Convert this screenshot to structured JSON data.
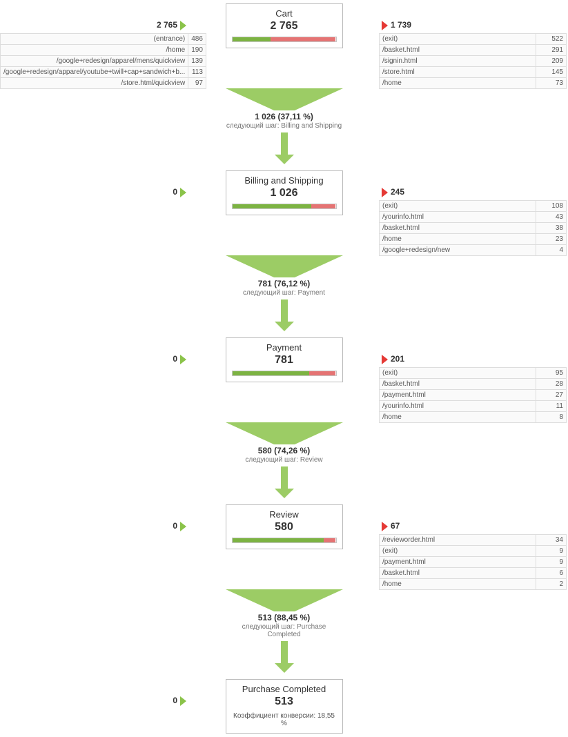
{
  "colors": {
    "green": "#8bc34a",
    "green_dark": "#7cb342",
    "red": "#e57373",
    "red_tri": "#e53935",
    "border": "#bbb",
    "cell_border": "#ddd",
    "cell_bg": "#fafafa",
    "text_muted": "#757575"
  },
  "next_step_prefix": "следующий шаг: ",
  "conversion_label": "Коэффициент конверсии: ",
  "steps": [
    {
      "title": "Cart",
      "value": "2 765",
      "in": "2 765",
      "out": "1 739",
      "continue_value": "1 026",
      "continue_pct": "(37,11 %)",
      "next_label": "Billing and Shipping",
      "bar_green_pct": 37.11,
      "in_table": [
        [
          "(entrance)",
          "486"
        ],
        [
          "/home",
          "190"
        ],
        [
          "/google+redesign/apparel/mens/quickview",
          "139"
        ],
        [
          "/google+redesign/apparel/youtube+twill+cap+sandwich+b...",
          "113"
        ],
        [
          "/store.html/quickview",
          "97"
        ]
      ],
      "out_table": [
        [
          "(exit)",
          "522"
        ],
        [
          "/basket.html",
          "291"
        ],
        [
          "/signin.html",
          "209"
        ],
        [
          "/store.html",
          "145"
        ],
        [
          "/home",
          "73"
        ]
      ]
    },
    {
      "title": "Billing and Shipping",
      "value": "1 026",
      "in": "0",
      "out": "245",
      "continue_value": "781",
      "continue_pct": "(76,12 %)",
      "next_label": "Payment",
      "bar_green_pct": 76.12,
      "in_table": [],
      "out_table": [
        [
          "(exit)",
          "108"
        ],
        [
          "/yourinfo.html",
          "43"
        ],
        [
          "/basket.html",
          "38"
        ],
        [
          "/home",
          "23"
        ],
        [
          "/google+redesign/new",
          "4"
        ]
      ]
    },
    {
      "title": "Payment",
      "value": "781",
      "in": "0",
      "out": "201",
      "continue_value": "580",
      "continue_pct": "(74,26 %)",
      "next_label": "Review",
      "bar_green_pct": 74.26,
      "in_table": [],
      "out_table": [
        [
          "(exit)",
          "95"
        ],
        [
          "/basket.html",
          "28"
        ],
        [
          "/payment.html",
          "27"
        ],
        [
          "/yourinfo.html",
          "11"
        ],
        [
          "/home",
          "8"
        ]
      ]
    },
    {
      "title": "Review",
      "value": "580",
      "in": "0",
      "out": "67",
      "continue_value": "513",
      "continue_pct": "(88,45 %)",
      "next_label": "Purchase Completed",
      "bar_green_pct": 88.45,
      "in_table": [],
      "out_table": [
        [
          "/revieworder.html",
          "34"
        ],
        [
          "(exit)",
          "9"
        ],
        [
          "/payment.html",
          "9"
        ],
        [
          "/basket.html",
          "6"
        ],
        [
          "/home",
          "2"
        ]
      ]
    },
    {
      "title": "Purchase Completed",
      "value": "513",
      "in": "0",
      "out": "",
      "continue_value": "",
      "continue_pct": "",
      "next_label": "",
      "bar_green_pct": 100,
      "conversion": "18,55 %",
      "in_table": [],
      "out_table": []
    }
  ]
}
